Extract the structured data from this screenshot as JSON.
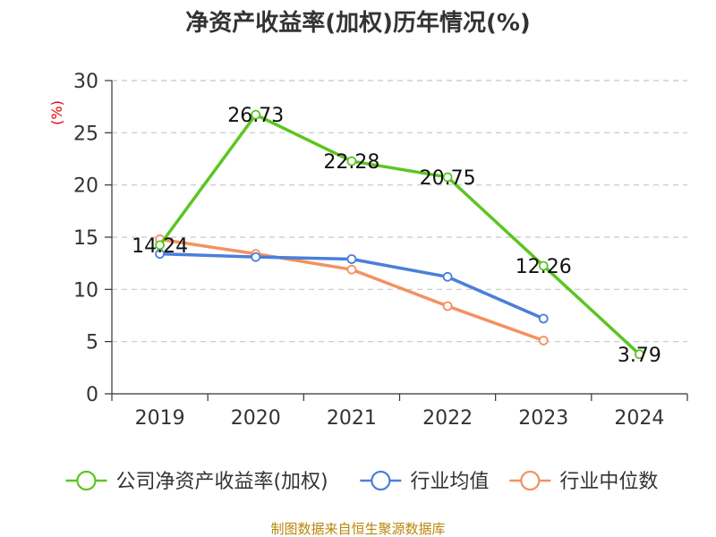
{
  "chart_data": {
    "type": "line",
    "title": "净资产收益率(加权)历年情况(%)",
    "ylabel": "(%)",
    "xlabel": "",
    "categories": [
      "2019",
      "2020",
      "2021",
      "2022",
      "2023",
      "2024"
    ],
    "ylim": [
      0,
      30
    ],
    "yticks": [
      0,
      5,
      10,
      15,
      20,
      25,
      30
    ],
    "grid": true,
    "legend_position": "bottom",
    "series": [
      {
        "name": "公司净资产收益率(加权)",
        "color": "#5cc522",
        "values": [
          14.24,
          26.73,
          22.28,
          20.75,
          12.26,
          3.79
        ],
        "labels": [
          "14.24",
          "26.73",
          "22.28",
          "20.75",
          "12.26",
          "3.79"
        ]
      },
      {
        "name": "行业均值",
        "color": "#4a7fd9",
        "values": [
          13.4,
          13.1,
          12.9,
          11.2,
          7.2,
          null
        ]
      },
      {
        "name": "行业中位数",
        "color": "#f49160",
        "values": [
          14.8,
          13.4,
          11.9,
          8.4,
          5.1,
          null
        ]
      }
    ],
    "source": "制图数据来自恒生聚源数据库"
  }
}
